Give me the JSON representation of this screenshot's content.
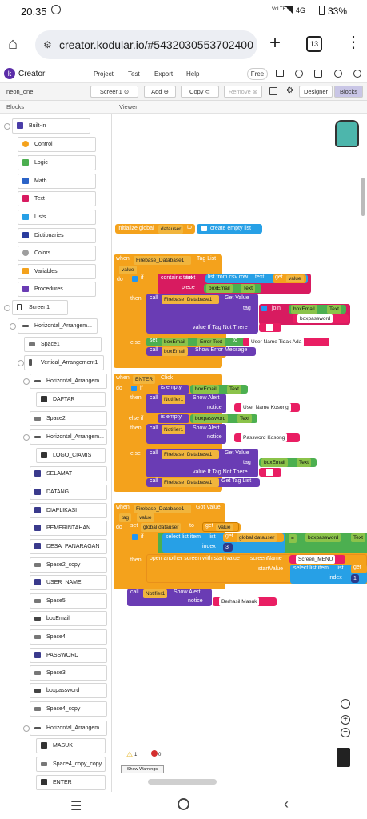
{
  "status": {
    "time": "20.35",
    "battery": "33%",
    "network": "4G"
  },
  "browser": {
    "url": "creator.kodular.io/#5432030553702400",
    "tabs": "13"
  },
  "app": {
    "brand": "Creator",
    "menu": [
      "Project",
      "Test",
      "Export",
      "Help"
    ],
    "plan_badge": "Free"
  },
  "toolbar": {
    "project": "neon_one",
    "screen": "Screen1",
    "add": "Add",
    "copy": "Copy",
    "remove": "Remove",
    "designer": "Designer",
    "blocks": "Blocks"
  },
  "panels": {
    "blocks": "Blocks",
    "viewer": "Viewer"
  },
  "sidebar": {
    "builtin": "Built-in",
    "builtin_items": [
      "Control",
      "Logic",
      "Math",
      "Text",
      "Lists",
      "Dictionaries",
      "Colors",
      "Variables",
      "Procedures"
    ],
    "screen": "Screen1",
    "components": [
      "Horizontal_Arrangem...",
      "Space1",
      "Vertical_Arrangement1",
      "Horizontal_Arrangem...",
      "DAFTAR",
      "Space2",
      "Horizontal_Arrangem...",
      "LOGO_CIAMIS",
      "SELAMAT",
      "DATANG",
      "DIAPLIKASI",
      "PEMERINTAHAN",
      "DESA_PANARAGAN",
      "Space2_copy",
      "USER_NAME",
      "Space5",
      "boxEmail",
      "Space4",
      "PASSWORD",
      "Space3",
      "boxpassword",
      "Space4_copy",
      "Horizontal_Arrangem...",
      "MASUK",
      "Space4_copy_copy",
      "ENTER"
    ]
  },
  "blocks": {
    "init": {
      "label": "initialize global",
      "var": "datauser",
      "to": "to",
      "value": "create empty list"
    },
    "tag_list": {
      "when": "when",
      "comp": "Firebase_Database1",
      "event": "Tag List",
      "param": "value",
      "do": "do",
      "if": "if",
      "contains": "contains text",
      "text": "text",
      "csv": "list from csv row",
      "csv_text": "text",
      "get": "get",
      "get_var": "value",
      "piece": "piece",
      "box": "boxEmail",
      "prop": "Text",
      "then": "then",
      "call": "call",
      "getvalue": "Get Value",
      "tag": "tag",
      "join": "join",
      "box2": "boxEmail",
      "prop2": "Text",
      "str_pw": "boxpassword",
      "notthere": "value If Tag Not There",
      "else": "else",
      "set": "set",
      "boxErr": "boxEmail",
      "errprop": "Error Text",
      "to": "to",
      "errmsg": "User Name Tidak Ada",
      "call2": "call",
      "showerr": "boxEmail",
      "showerrm": "Show Error Message"
    },
    "enter_click": {
      "when": "when",
      "comp": "ENTER",
      "event": "Click",
      "do": "do",
      "if": "if",
      "isempty": "is empty",
      "box": "boxEmail",
      "prop": "Text",
      "then": "then",
      "call": "call",
      "notifier": "Notifier1",
      "alert": "Show Alert",
      "notice": "notice",
      "msg1": "User Name Kosong",
      "elseif": "else if",
      "isempty2": "is empty",
      "box2": "boxpassword",
      "prop2": "Text",
      "then2": "then",
      "msg2": "Password Kosong",
      "else": "else",
      "fb": "Firebase_Database1",
      "getvalue": "Get Value",
      "tag": "tag",
      "box3": "boxEmail",
      "prop3": "Text",
      "notthere": "value If Tag Not There",
      "gettaglist": "Get Tag List"
    },
    "got_value": {
      "when": "when",
      "comp": "Firebase_Database1",
      "event": "Got Value",
      "p1": "tag",
      "p2": "value",
      "do": "do",
      "set": "set",
      "var": "global datauser",
      "to": "to",
      "get": "get",
      "getv": "value",
      "if": "if",
      "select": "select list item",
      "list": "list",
      "get2": "get",
      "var2": "global datauser",
      "eq": "=",
      "box": "boxpassword",
      "prop": "Text",
      "index": "index",
      "idx": "3",
      "then": "then",
      "open": "open another screen with start value",
      "screenName": "screenName",
      "screen": "Screen_MENU",
      "startValue": "startValue",
      "select2": "select list item",
      "list2": "list",
      "get3": "get",
      "index2": "index",
      "idx2": "1",
      "call": "call",
      "notifier": "Notifier1",
      "alert": "Show Alert",
      "notice": "notice",
      "msg": "Berhasil Masuk"
    }
  },
  "warnings": {
    "warn_count": "1",
    "err_count": "0",
    "button": "Show Warnings"
  }
}
